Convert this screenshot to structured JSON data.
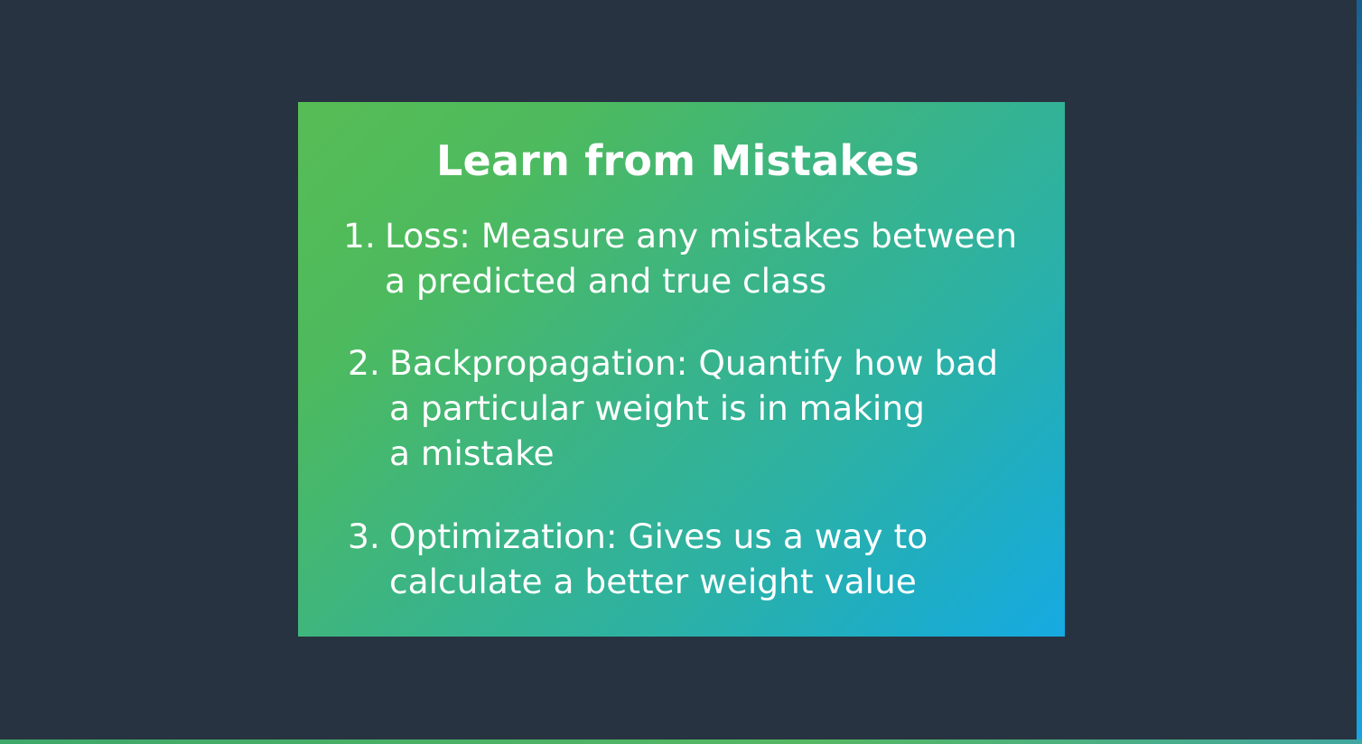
{
  "slide": {
    "title": "Learn from Mistakes",
    "items": [
      {
        "number": "1.",
        "lines": [
          "Loss: Measure any mistakes between",
          "a predicted and true class"
        ]
      },
      {
        "number": "2.",
        "lines": [
          "Backpropagation: Quantify how bad",
          "a particular weight is in making",
          "a mistake"
        ]
      },
      {
        "number": "3.",
        "lines": [
          "Optimization: Gives us a way to",
          "calculate a better weight value"
        ]
      }
    ]
  },
  "colors": {
    "background": "#283341",
    "gradient_start": "#57bd55",
    "gradient_end": "#16aae2",
    "text": "#ffffff"
  }
}
